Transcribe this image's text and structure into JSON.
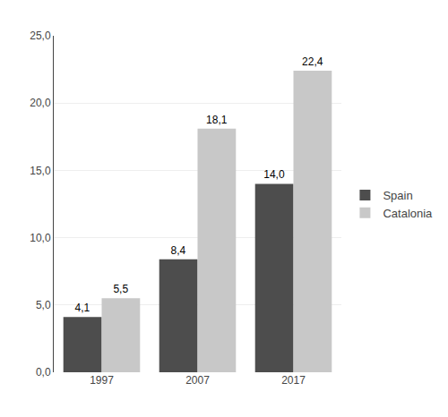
{
  "chart_data": {
    "type": "bar",
    "categories": [
      "1997",
      "2007",
      "2017"
    ],
    "series": [
      {
        "name": "Spain",
        "color": "#4d4d4d",
        "values": [
          4.1,
          8.4,
          14.0
        ],
        "value_labels": [
          "4,1",
          "8,4",
          "14,0"
        ]
      },
      {
        "name": "Catalonia",
        "color": "#c8c8c8",
        "values": [
          5.5,
          18.1,
          22.4
        ],
        "value_labels": [
          "5,5",
          "18,1",
          "22,4"
        ]
      }
    ],
    "ylim": [
      0,
      25
    ],
    "yticks": [
      {
        "value": 0,
        "label": "0,0"
      },
      {
        "value": 5,
        "label": "5,0"
      },
      {
        "value": 10,
        "label": "10,0"
      },
      {
        "value": 15,
        "label": "15,0"
      },
      {
        "value": 20,
        "label": "20,0"
      },
      {
        "value": 25,
        "label": "25,0"
      }
    ],
    "grid": true,
    "legend": "right",
    "data_labels": true
  }
}
